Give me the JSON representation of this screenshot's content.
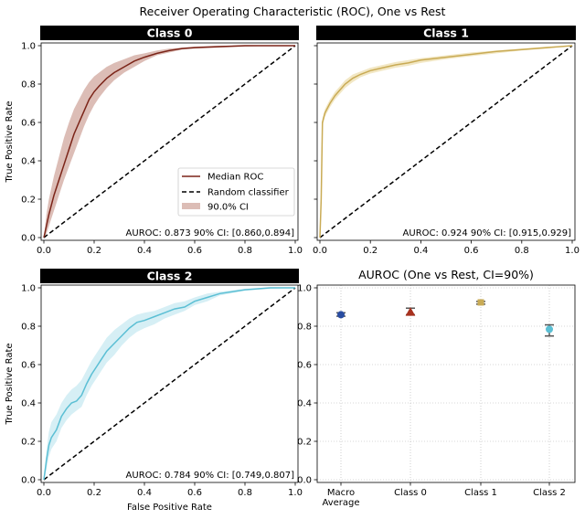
{
  "chart_data": {
    "type": "line",
    "title": "Receiver Operating Characteristic (ROC), One vs Rest",
    "ylabel": "True Positive Rate",
    "xlabel": "False Positive Rate",
    "xticks": [
      "0.0",
      "0.2",
      "0.4",
      "0.6",
      "0.8",
      "1.0"
    ],
    "yticks": [
      "0.0",
      "0.2",
      "0.4",
      "0.6",
      "0.8",
      "1.0"
    ],
    "xlim": [
      0,
      1
    ],
    "ylim": [
      0,
      1
    ],
    "legend": {
      "placement": "lower-right",
      "entries": [
        "Median ROC",
        "Random classifier",
        "90.0% CI"
      ]
    },
    "panels": [
      {
        "title": "Class 0",
        "color": "#7b2418",
        "band_color": "#dcbdb6",
        "auroc_text": "AUROC: 0.873 90% CI: [0.860,0.894]",
        "roc": {
          "x": [
            0,
            0.01,
            0.02,
            0.04,
            0.06,
            0.08,
            0.1,
            0.12,
            0.14,
            0.16,
            0.18,
            0.2,
            0.22,
            0.25,
            0.28,
            0.32,
            0.36,
            0.4,
            0.45,
            0.5,
            0.55,
            0.6,
            0.7,
            0.8,
            0.9,
            1.0
          ],
          "y": [
            0,
            0.06,
            0.12,
            0.22,
            0.3,
            0.38,
            0.46,
            0.54,
            0.6,
            0.66,
            0.72,
            0.76,
            0.79,
            0.83,
            0.86,
            0.89,
            0.92,
            0.94,
            0.96,
            0.975,
            0.985,
            0.99,
            0.995,
            1.0,
            1.0,
            1.0
          ],
          "lower": [
            0,
            0.02,
            0.06,
            0.14,
            0.22,
            0.3,
            0.37,
            0.44,
            0.51,
            0.58,
            0.64,
            0.69,
            0.73,
            0.78,
            0.82,
            0.86,
            0.89,
            0.92,
            0.95,
            0.965,
            0.98,
            0.985,
            0.99,
            0.995,
            1.0,
            1.0
          ],
          "upper": [
            0,
            0.12,
            0.2,
            0.32,
            0.42,
            0.52,
            0.6,
            0.67,
            0.72,
            0.77,
            0.81,
            0.84,
            0.86,
            0.89,
            0.91,
            0.93,
            0.95,
            0.96,
            0.975,
            0.985,
            0.99,
            0.995,
            1.0,
            1.0,
            1.0,
            1.0
          ]
        }
      },
      {
        "title": "Class 1",
        "color": "#c9ab55",
        "band_color": "#f2e7c4",
        "auroc_text": "AUROC: 0.924 90% CI: [0.915,0.929]",
        "roc": {
          "x": [
            0,
            0.005,
            0.01,
            0.02,
            0.04,
            0.06,
            0.08,
            0.1,
            0.13,
            0.16,
            0.2,
            0.25,
            0.3,
            0.35,
            0.4,
            0.5,
            0.6,
            0.7,
            0.8,
            0.9,
            1.0
          ],
          "y": [
            0,
            0.2,
            0.6,
            0.65,
            0.7,
            0.74,
            0.77,
            0.8,
            0.83,
            0.85,
            0.87,
            0.885,
            0.9,
            0.91,
            0.925,
            0.94,
            0.955,
            0.97,
            0.98,
            0.99,
            1.0
          ],
          "lower": [
            0,
            0.18,
            0.58,
            0.63,
            0.68,
            0.72,
            0.75,
            0.78,
            0.81,
            0.835,
            0.855,
            0.87,
            0.885,
            0.895,
            0.91,
            0.93,
            0.945,
            0.96,
            0.975,
            0.985,
            1.0
          ],
          "upper": [
            0,
            0.22,
            0.62,
            0.67,
            0.72,
            0.76,
            0.79,
            0.82,
            0.85,
            0.865,
            0.885,
            0.9,
            0.915,
            0.925,
            0.935,
            0.95,
            0.965,
            0.975,
            0.985,
            0.995,
            1.0
          ]
        }
      },
      {
        "title": "Class 2",
        "color": "#5bbfd4",
        "band_color": "#d6eff5",
        "auroc_text": "AUROC: 0.784 90% CI: [0.749,0.807]",
        "roc": {
          "x": [
            0,
            0.01,
            0.02,
            0.03,
            0.05,
            0.07,
            0.09,
            0.11,
            0.13,
            0.15,
            0.17,
            0.19,
            0.21,
            0.23,
            0.25,
            0.28,
            0.31,
            0.34,
            0.37,
            0.4,
            0.44,
            0.48,
            0.52,
            0.56,
            0.6,
            0.65,
            0.7,
            0.8,
            0.9,
            1.0
          ],
          "y": [
            0,
            0.1,
            0.18,
            0.22,
            0.26,
            0.33,
            0.37,
            0.4,
            0.41,
            0.44,
            0.5,
            0.55,
            0.59,
            0.63,
            0.67,
            0.71,
            0.75,
            0.79,
            0.82,
            0.83,
            0.85,
            0.87,
            0.89,
            0.9,
            0.93,
            0.95,
            0.97,
            0.99,
            1.0,
            1.0
          ],
          "lower": [
            0,
            0.05,
            0.12,
            0.16,
            0.2,
            0.27,
            0.31,
            0.34,
            0.36,
            0.38,
            0.44,
            0.49,
            0.53,
            0.57,
            0.61,
            0.65,
            0.7,
            0.74,
            0.77,
            0.79,
            0.81,
            0.84,
            0.86,
            0.88,
            0.91,
            0.93,
            0.96,
            0.985,
            0.995,
            1.0
          ],
          "upper": [
            0,
            0.15,
            0.25,
            0.3,
            0.34,
            0.4,
            0.44,
            0.47,
            0.49,
            0.52,
            0.57,
            0.62,
            0.66,
            0.7,
            0.74,
            0.78,
            0.81,
            0.84,
            0.86,
            0.87,
            0.88,
            0.9,
            0.92,
            0.93,
            0.95,
            0.97,
            0.98,
            0.995,
            1.0,
            1.0
          ]
        }
      }
    ],
    "summary": {
      "type": "scatter",
      "title": "AUROC (One vs Rest, CI=90%)",
      "categories": [
        "Macro\nAverage",
        "Class 0",
        "Class 1",
        "Class 2"
      ],
      "values": [
        0.86,
        0.873,
        0.924,
        0.784
      ],
      "ci_low": [
        0.852,
        0.86,
        0.915,
        0.749
      ],
      "ci_high": [
        0.87,
        0.894,
        0.929,
        0.807
      ],
      "colors": [
        "#2a4da1",
        "#a8321f",
        "#c9ab55",
        "#5bbfd4"
      ],
      "markers": [
        "circle",
        "triangle",
        "square",
        "circle"
      ],
      "ylim": [
        0,
        1
      ],
      "yticks": [
        "0.0",
        "0.2",
        "0.4",
        "0.6",
        "0.8",
        "1.0"
      ],
      "grid": true
    }
  }
}
